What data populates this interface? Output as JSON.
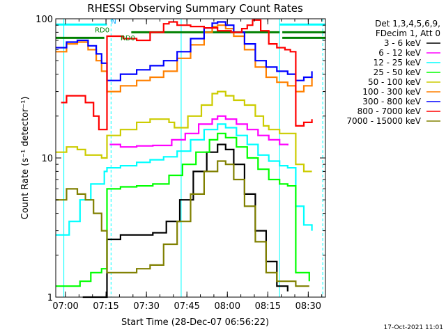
{
  "chart_data": {
    "type": "line",
    "title": "RHESSI Observing Summary Count Rates",
    "xlabel": "Start Time (28-Dec-07 06:56:22)",
    "ylabel": "Count Rate (s⁻¹ detector⁻¹)",
    "x_unit": "minutes after 06:56:22",
    "xlim": [
      0,
      100
    ],
    "x_ticks": [
      {
        "x": 3.63,
        "label": "07:00"
      },
      {
        "x": 18.63,
        "label": "07:15"
      },
      {
        "x": 33.63,
        "label": "07:30"
      },
      {
        "x": 48.63,
        "label": "07:45"
      },
      {
        "x": 63.63,
        "label": "08:00"
      },
      {
        "x": 78.63,
        "label": "08:15"
      },
      {
        "x": 93.63,
        "label": "08:30"
      }
    ],
    "yscale": "log",
    "ylim": [
      1,
      100
    ],
    "y_ticks": [
      {
        "y": 1,
        "label": "1"
      },
      {
        "y": 10,
        "label": "10"
      },
      {
        "y": 100,
        "label": "100"
      }
    ],
    "legend_header": [
      "Det 1,3,4,5,6,9,",
      "FDecim 1, Att 0"
    ],
    "legend_position": "right",
    "series": [
      {
        "name": "3 - 6 keV",
        "color": "#000000",
        "points": [
          [
            10,
            1
          ],
          [
            15,
            1
          ],
          [
            19,
            2.6
          ],
          [
            24,
            2.8
          ],
          [
            30,
            2.8
          ],
          [
            36,
            2.9
          ],
          [
            41,
            3.5
          ],
          [
            46,
            5
          ],
          [
            51,
            8
          ],
          [
            56,
            11
          ],
          [
            60,
            12.5
          ],
          [
            63,
            11.5
          ],
          [
            66,
            9
          ],
          [
            70,
            5.5
          ],
          [
            74,
            3
          ],
          [
            78,
            1.8
          ],
          [
            82,
            1.2
          ],
          [
            86,
            1.1
          ]
        ]
      },
      {
        "name": "6 - 12 keV",
        "color": "#ff00ff",
        "points": [
          [
            20,
            12.5
          ],
          [
            24,
            12
          ],
          [
            30,
            12.2
          ],
          [
            36,
            12.3
          ],
          [
            43,
            13.5
          ],
          [
            48,
            15
          ],
          [
            53,
            17.5
          ],
          [
            58,
            19
          ],
          [
            60,
            20
          ],
          [
            63,
            19
          ],
          [
            67,
            17.5
          ],
          [
            71,
            16
          ],
          [
            75,
            14.5
          ],
          [
            79,
            13.5
          ],
          [
            83,
            12.5
          ],
          [
            86,
            12.3
          ]
        ]
      },
      {
        "name": "12 - 25 keV",
        "color": "#00ffff",
        "points": [
          [
            0,
            2.8
          ],
          [
            5,
            3.5
          ],
          [
            9,
            5
          ],
          [
            13,
            6.5
          ],
          [
            18,
            8
          ],
          [
            19,
            8.5
          ],
          [
            24,
            8.8
          ],
          [
            30,
            9.3
          ],
          [
            35,
            9.7
          ],
          [
            40,
            10.2
          ],
          [
            45,
            11.2
          ],
          [
            50,
            13.5
          ],
          [
            55,
            16
          ],
          [
            60,
            17.5
          ],
          [
            63,
            16.5
          ],
          [
            67,
            14.5
          ],
          [
            71,
            12.5
          ],
          [
            75,
            10.5
          ],
          [
            79,
            9.5
          ],
          [
            83,
            8.8
          ],
          [
            86,
            8.5
          ],
          [
            89,
            4.5
          ],
          [
            92,
            3.3
          ],
          [
            95,
            3
          ]
        ]
      },
      {
        "name": "25 - 50 keV",
        "color": "#00ff00",
        "points": [
          [
            0,
            1.2
          ],
          [
            5,
            1.2
          ],
          [
            9,
            1.3
          ],
          [
            13,
            1.5
          ],
          [
            17,
            1.6
          ],
          [
            19,
            6
          ],
          [
            24,
            6.2
          ],
          [
            30,
            6.3
          ],
          [
            36,
            6.5
          ],
          [
            42,
            7.5
          ],
          [
            47,
            9
          ],
          [
            52,
            11
          ],
          [
            57,
            13.5
          ],
          [
            60,
            15
          ],
          [
            63,
            14
          ],
          [
            67,
            12
          ],
          [
            71,
            10
          ],
          [
            75,
            8.3
          ],
          [
            79,
            7
          ],
          [
            83,
            6.5
          ],
          [
            86,
            6.3
          ],
          [
            89,
            1.5
          ],
          [
            94,
            1.3
          ]
        ]
      },
      {
        "name": "50 - 100 keV",
        "color": "#cccc00",
        "points": [
          [
            0,
            11
          ],
          [
            4,
            12
          ],
          [
            8,
            11.5
          ],
          [
            11,
            10.5
          ],
          [
            14,
            10.5
          ],
          [
            17,
            10
          ],
          [
            19,
            14.5
          ],
          [
            24,
            16
          ],
          [
            30,
            18
          ],
          [
            35,
            19
          ],
          [
            42,
            18
          ],
          [
            44,
            16.5
          ],
          [
            49,
            20
          ],
          [
            54,
            24
          ],
          [
            58,
            29
          ],
          [
            60,
            30
          ],
          [
            63,
            28
          ],
          [
            66,
            26
          ],
          [
            70,
            24
          ],
          [
            74,
            20
          ],
          [
            77,
            17
          ],
          [
            79,
            16
          ],
          [
            83,
            15
          ],
          [
            86,
            15
          ],
          [
            89,
            9
          ],
          [
            92,
            8
          ],
          [
            95,
            8
          ]
        ]
      },
      {
        "name": "100 - 300 keV",
        "color": "#ff8000",
        "points": [
          [
            0,
            58
          ],
          [
            4,
            66
          ],
          [
            8,
            68
          ],
          [
            12,
            60
          ],
          [
            15,
            50
          ],
          [
            17,
            42
          ],
          [
            19,
            30
          ],
          [
            24,
            33
          ],
          [
            30,
            36
          ],
          [
            35,
            38
          ],
          [
            40,
            42
          ],
          [
            45,
            52
          ],
          [
            50,
            65
          ],
          [
            55,
            80
          ],
          [
            58,
            88
          ],
          [
            60,
            90
          ],
          [
            63,
            85
          ],
          [
            66,
            75
          ],
          [
            70,
            60
          ],
          [
            74,
            45
          ],
          [
            78,
            38
          ],
          [
            82,
            35
          ],
          [
            86,
            33
          ],
          [
            89,
            30
          ],
          [
            92,
            33
          ],
          [
            95,
            38
          ]
        ]
      },
      {
        "name": "300 - 800 keV",
        "color": "#0000ff",
        "points": [
          [
            0,
            62
          ],
          [
            4,
            68
          ],
          [
            8,
            70
          ],
          [
            12,
            64
          ],
          [
            15,
            56
          ],
          [
            17,
            48
          ],
          [
            19,
            36
          ],
          [
            24,
            40
          ],
          [
            30,
            43
          ],
          [
            35,
            46
          ],
          [
            40,
            50
          ],
          [
            45,
            58
          ],
          [
            50,
            72
          ],
          [
            55,
            86
          ],
          [
            58,
            93
          ],
          [
            60,
            95
          ],
          [
            63,
            90
          ],
          [
            66,
            80
          ],
          [
            70,
            66
          ],
          [
            74,
            50
          ],
          [
            78,
            45
          ],
          [
            82,
            42
          ],
          [
            86,
            40
          ],
          [
            89,
            36
          ],
          [
            92,
            38
          ],
          [
            95,
            42
          ]
        ]
      },
      {
        "name": "800 - 7000 keV",
        "color": "#ff0000",
        "points": [
          [
            2,
            25
          ],
          [
            4,
            28
          ],
          [
            8,
            28
          ],
          [
            11,
            25
          ],
          [
            14,
            20
          ],
          [
            16,
            16
          ],
          [
            19,
            75
          ],
          [
            25,
            72
          ],
          [
            30,
            70
          ],
          [
            35,
            80
          ],
          [
            40,
            92
          ],
          [
            42,
            95
          ],
          [
            45,
            90
          ],
          [
            50,
            88
          ],
          [
            55,
            86
          ],
          [
            60,
            82
          ],
          [
            65,
            80
          ],
          [
            69,
            85
          ],
          [
            71,
            90
          ],
          [
            73,
            98
          ],
          [
            76,
            82
          ],
          [
            79,
            66
          ],
          [
            82,
            62
          ],
          [
            85,
            60
          ],
          [
            87,
            58
          ],
          [
            89,
            17
          ],
          [
            92,
            18
          ],
          [
            95,
            19
          ]
        ]
      },
      {
        "name": "7000 - 15000 keV",
        "color": "#808000",
        "points": [
          [
            0,
            5
          ],
          [
            4,
            6
          ],
          [
            8,
            5.5
          ],
          [
            11,
            5
          ],
          [
            14,
            4
          ],
          [
            17,
            3
          ],
          [
            19,
            1.5
          ],
          [
            24,
            1.5
          ],
          [
            30,
            1.6
          ],
          [
            35,
            1.7
          ],
          [
            40,
            2.4
          ],
          [
            45,
            3.5
          ],
          [
            50,
            5.5
          ],
          [
            55,
            8
          ],
          [
            60,
            9.5
          ],
          [
            63,
            9
          ],
          [
            66,
            7
          ],
          [
            70,
            4.5
          ],
          [
            74,
            2.5
          ],
          [
            78,
            1.5
          ],
          [
            82,
            1.3
          ],
          [
            86,
            1.3
          ],
          [
            89,
            1.2
          ],
          [
            94,
            1.2
          ]
        ]
      }
    ],
    "annotations": [
      {
        "text": "N",
        "color": "#00aaff",
        "x": 20.5,
        "y": 92
      },
      {
        "text": "RD0",
        "color": "#008000",
        "x": 14.5,
        "y": 80
      },
      {
        "text": "RD0",
        "color": "#008000",
        "x": 24,
        "y": 70
      }
    ],
    "vlines": [
      {
        "x": 3.0,
        "color": "#00ffff",
        "style": "solid"
      },
      {
        "x": 20.5,
        "color": "#00ffff",
        "style": "dashed"
      },
      {
        "x": 46.5,
        "color": "#00ffff",
        "style": "solid"
      },
      {
        "x": 83.0,
        "color": "#00ffff",
        "style": "solid"
      },
      {
        "x": 99.0,
        "color": "#00ffff",
        "style": "dashed"
      }
    ],
    "hbars": [
      {
        "x1": 0,
        "x2": 19,
        "y": 91,
        "color": "#00ffff"
      },
      {
        "x1": 83,
        "x2": 100,
        "y": 91,
        "color": "#00ffff"
      },
      {
        "x1": 0,
        "x2": 18,
        "y": 73,
        "color": "#008000"
      },
      {
        "x1": 28,
        "x2": 83,
        "y": 80,
        "color": "#008000"
      },
      {
        "x1": 84,
        "x2": 100,
        "y": 80,
        "color": "#008000"
      },
      {
        "x1": 84,
        "x2": 100,
        "y": 73,
        "color": "#008000"
      }
    ]
  },
  "footer": {
    "timestamp": "17-Oct-2021 11:01"
  }
}
